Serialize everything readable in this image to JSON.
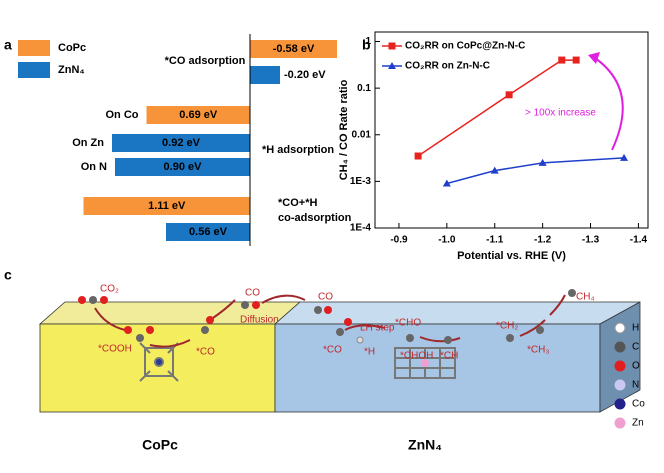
{
  "chart_data": [
    {
      "type": "hbar",
      "label": "a",
      "categories": [
        null,
        null,
        "On Co",
        "On Zn",
        "On N",
        null,
        null
      ],
      "series": [
        {
          "name": "CoPc",
          "color": "#f7943a",
          "values": [
            -0.58,
            null,
            0.69,
            null,
            null,
            1.11,
            null
          ],
          "value_labels": [
            "-0.58 eV",
            null,
            "0.69 eV",
            null,
            null,
            "1.11 eV",
            null
          ]
        },
        {
          "name": "ZnN₄",
          "color": "#1a75c2",
          "values": [
            null,
            -0.2,
            null,
            0.92,
            0.9,
            null,
            0.56
          ],
          "value_labels": [
            null,
            "-0.20 eV",
            null,
            "0.92 eV",
            "0.90 eV",
            null,
            "0.56 eV"
          ]
        }
      ],
      "annotations": [
        "*CO adsorption",
        "*H adsorption",
        "*CO+*H",
        "co-adsorption"
      ]
    },
    {
      "type": "line",
      "label": "b",
      "log_y": true,
      "x_label": "Potential vs. RHE (V)",
      "y_label": "CH₄ / CO Rate ratio",
      "xlim": [
        -0.85,
        -1.42
      ],
      "ylim": [
        0.0001,
        1.6
      ],
      "xticks": [
        -0.9,
        {
          "value": -1.0,
          "label": "-1.0"
        },
        -1.1,
        -1.2,
        -1.3,
        -1.4
      ],
      "yticks": [
        {
          "value": 0.0001,
          "label": "1E-4"
        },
        {
          "value": 0.001,
          "label": "1E-3"
        },
        0.01,
        0.1,
        1
      ],
      "series": [
        {
          "name": "CO₂RR on CoPc@Zn-N-C",
          "color": "#e8231f",
          "marker": "square",
          "x": [
            -0.94,
            -1.13,
            -1.24,
            -1.27
          ],
          "values": [
            0.0035,
            0.072,
            0.4,
            0.4
          ]
        },
        {
          "name": "CO₂RR on Zn-N-C",
          "color": "#1f3fcc",
          "marker": "triangle",
          "x": [
            -1.0,
            -1.1,
            -1.2,
            -1.37
          ],
          "values": [
            0.0009,
            0.0017,
            0.0025,
            0.0032
          ]
        }
      ],
      "annotation": "> 100x increase"
    }
  ],
  "diagram": {
    "label": "c",
    "blocks": [
      "CoPc",
      "ZnN₄"
    ],
    "labels": [
      "CO₂",
      "*COOH",
      "*CO",
      "CO",
      "Diffusion",
      "CO",
      "*CO",
      "*H",
      "LH step",
      "*CHO",
      "*CHOH",
      "*CH",
      "*CH₂",
      "*CH₃",
      "CH₄"
    ],
    "legend": [
      "H",
      "C",
      "O",
      "N",
      "Co",
      "Zn"
    ]
  }
}
